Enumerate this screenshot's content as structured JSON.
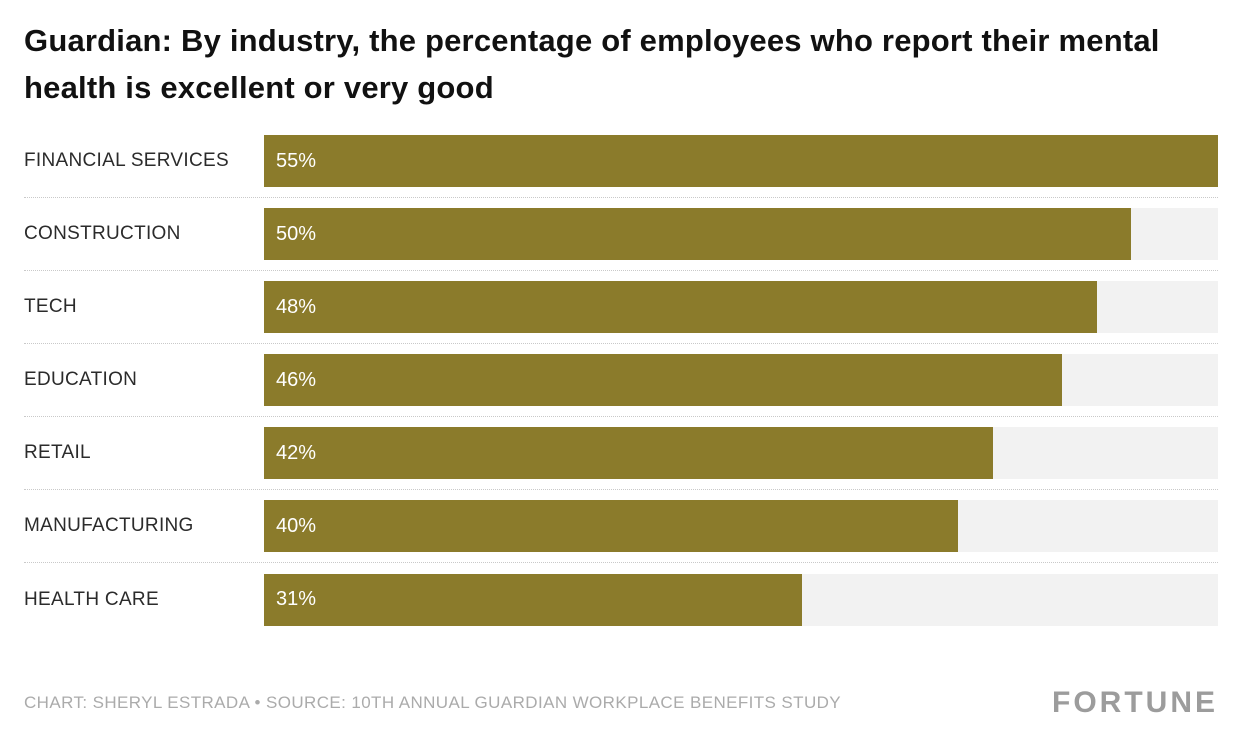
{
  "title": "Guardian: By industry, the percentage of employees who report their mental health is excellent or very good",
  "chart_data": {
    "type": "bar",
    "orientation": "horizontal",
    "categories": [
      "FINANCIAL SERVICES",
      "CONSTRUCTION",
      "TECH",
      "EDUCATION",
      "RETAIL",
      "MANUFACTURING",
      "HEALTH CARE"
    ],
    "values": [
      55,
      50,
      48,
      46,
      42,
      40,
      31
    ],
    "value_suffix": "%",
    "xlim": [
      0,
      55
    ],
    "title": "Guardian: By industry, the percentage of employees who report their mental health is excellent or very good",
    "xlabel": "",
    "ylabel": "",
    "grid": false,
    "legend": false,
    "bar_color": "#8b7b2b",
    "track_color": "#f2f2f2",
    "value_label_position": "inside-start"
  },
  "footer": {
    "credit": "CHART: SHERYL ESTRADA • SOURCE: 10TH ANNUAL GUARDIAN WORKPLACE BENEFITS STUDY",
    "brand": "FORTUNE"
  }
}
